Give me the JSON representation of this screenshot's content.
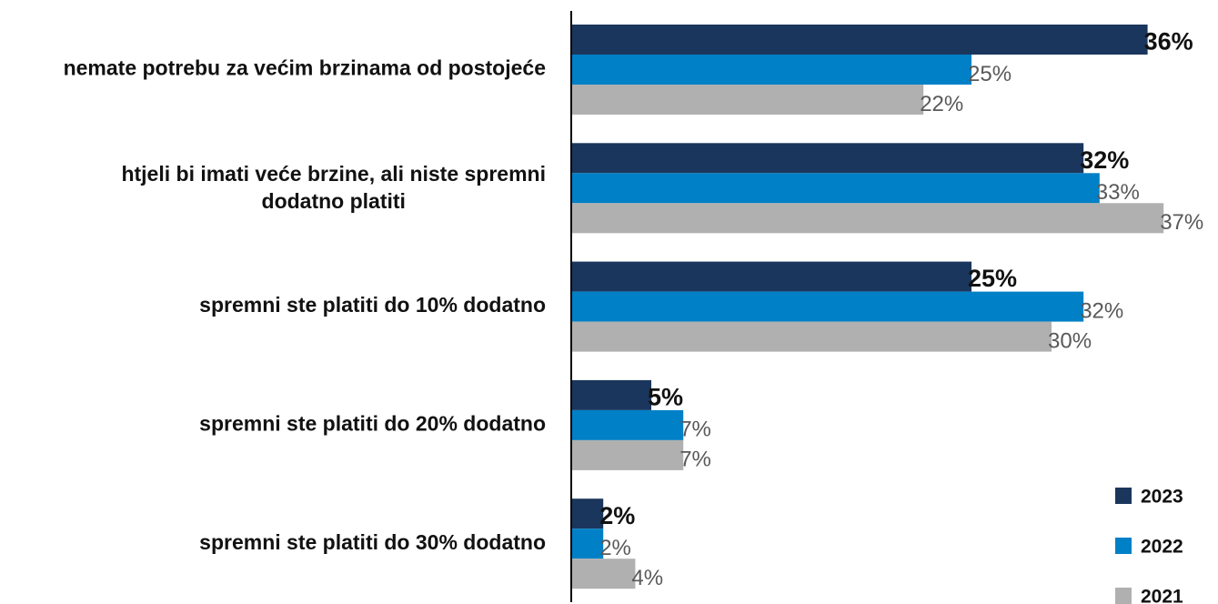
{
  "chart_data": {
    "type": "hbar",
    "categories": [
      "nemate potrebu za većim brzinama od postojeće",
      "htjeli bi imati veće brzine, ali niste spremni dodatno platiti",
      "spremni ste platiti do 10% dodatno",
      "spremni ste platiti do 20% dodatno",
      "spremni ste platiti do 30% dodatno"
    ],
    "series": [
      {
        "name": "2023",
        "color": "#1b365d",
        "values": [
          36,
          32,
          25,
          5,
          2
        ],
        "value_labels": [
          "36%",
          "32%",
          "25%",
          "5%",
          "2%"
        ]
      },
      {
        "name": "2022",
        "color": "#0080c6",
        "values": [
          25,
          33,
          32,
          7,
          2
        ],
        "value_labels": [
          "25%",
          "33%",
          "32%",
          "7%",
          "2%"
        ]
      },
      {
        "name": "2021",
        "color": "#b0b0b0",
        "values": [
          22,
          37,
          30,
          7,
          4
        ],
        "value_labels": [
          "22%",
          "37%",
          "30%",
          "7%",
          "4%"
        ]
      }
    ],
    "xlim": [
      0,
      40
    ],
    "legend": "bottom-right"
  }
}
